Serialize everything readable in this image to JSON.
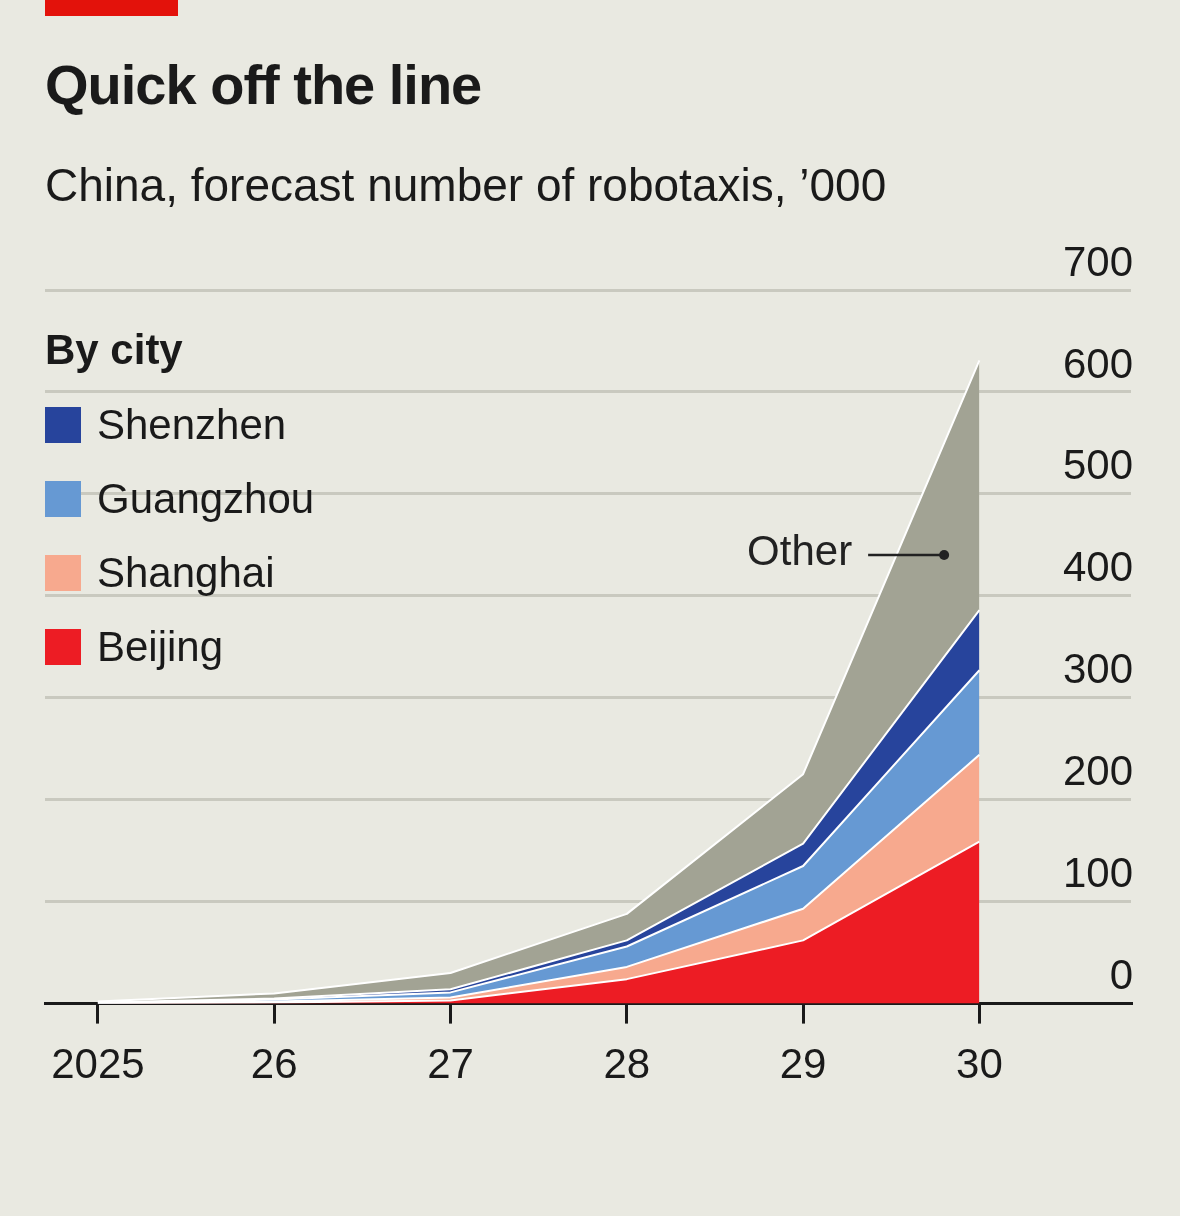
{
  "chart_data": {
    "type": "area",
    "title": "Quick off the line",
    "subtitle": "China, forecast number of robotaxis, ’000",
    "legend_title": "By city",
    "stacked": true,
    "legend": "top left",
    "grid": "y",
    "x": [
      2025,
      2026,
      2027,
      2028,
      2029,
      2030
    ],
    "xlim": [
      2024.7,
      2030.86
    ],
    "xticks": [
      2025,
      {
        "value": 2026,
        "label": "26"
      },
      {
        "value": 2027,
        "label": "27"
      },
      {
        "value": 2028,
        "label": "28"
      },
      {
        "value": 2029,
        "label": "29"
      },
      {
        "value": 2030,
        "label": "30"
      }
    ],
    "ylim": [
      0,
      700
    ],
    "yticks": [
      0,
      100,
      200,
      300,
      400,
      500,
      600,
      700
    ],
    "series": [
      {
        "name": "Beijing",
        "color": "#ed1c24",
        "values": [
          0,
          1,
          3,
          24,
          62,
          159
        ]
      },
      {
        "name": "Shanghai",
        "color": "#f7a98e",
        "values": [
          0,
          1,
          3,
          12,
          31,
          85
        ]
      },
      {
        "name": "Guangzhou",
        "color": "#6699d3",
        "values": [
          0,
          2,
          5,
          20,
          42,
          83
        ]
      },
      {
        "name": "Shenzhen",
        "color": "#27449c",
        "values": [
          1,
          1,
          3,
          6,
          22,
          59
        ]
      },
      {
        "color": "#a2a394",
        "values": [
          1,
          5,
          16,
          26,
          68,
          245
        ]
      }
    ],
    "annotations": [
      {
        "text": "Other",
        "x": 2029.8,
        "y": 440
      }
    ]
  }
}
